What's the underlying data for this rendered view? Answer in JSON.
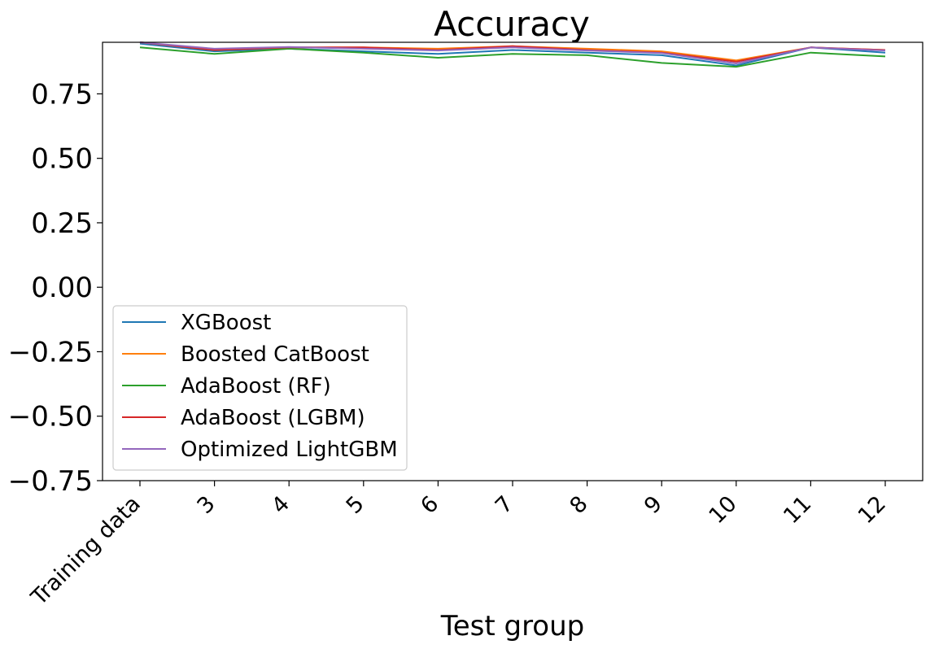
{
  "chart_data": {
    "type": "line",
    "title": "Accuracy",
    "xlabel": "Test group",
    "ylabel": "",
    "categories": [
      "Training data",
      "3",
      "4",
      "5",
      "6",
      "7",
      "8",
      "9",
      "10",
      "11",
      "12"
    ],
    "ylim": [
      -0.75,
      0.95
    ],
    "yticks": [
      -0.75,
      -0.5,
      -0.25,
      0.0,
      0.25,
      0.5,
      0.75
    ],
    "ytick_labels": [
      "−0.75",
      "−0.50",
      "−0.25",
      "0.00",
      "0.25",
      "0.50",
      "0.75"
    ],
    "grid": false,
    "legend_position": "lower-left",
    "series": [
      {
        "name": "XGBoost",
        "color": "#1f77b4",
        "values": [
          0.945,
          0.915,
          0.925,
          0.915,
          0.905,
          0.92,
          0.91,
          0.9,
          0.86,
          0.93,
          0.91
        ]
      },
      {
        "name": "Boosted CatBoost",
        "color": "#ff7f0e",
        "values": [
          0.95,
          0.92,
          0.93,
          0.93,
          0.925,
          0.935,
          0.925,
          0.915,
          0.88,
          0.93,
          0.92
        ]
      },
      {
        "name": "AdaBoost (RF)",
        "color": "#2ca02c",
        "values": [
          0.93,
          0.905,
          0.925,
          0.91,
          0.89,
          0.905,
          0.9,
          0.87,
          0.855,
          0.91,
          0.895
        ]
      },
      {
        "name": "AdaBoost (LGBM)",
        "color": "#d62728",
        "values": [
          0.95,
          0.92,
          0.93,
          0.93,
          0.92,
          0.935,
          0.92,
          0.91,
          0.875,
          0.93,
          0.92
        ]
      },
      {
        "name": "Optimized LightGBM",
        "color": "#9467bd",
        "values": [
          0.95,
          0.925,
          0.932,
          0.925,
          0.918,
          0.93,
          0.918,
          0.908,
          0.868,
          0.93,
          0.918
        ]
      }
    ]
  }
}
